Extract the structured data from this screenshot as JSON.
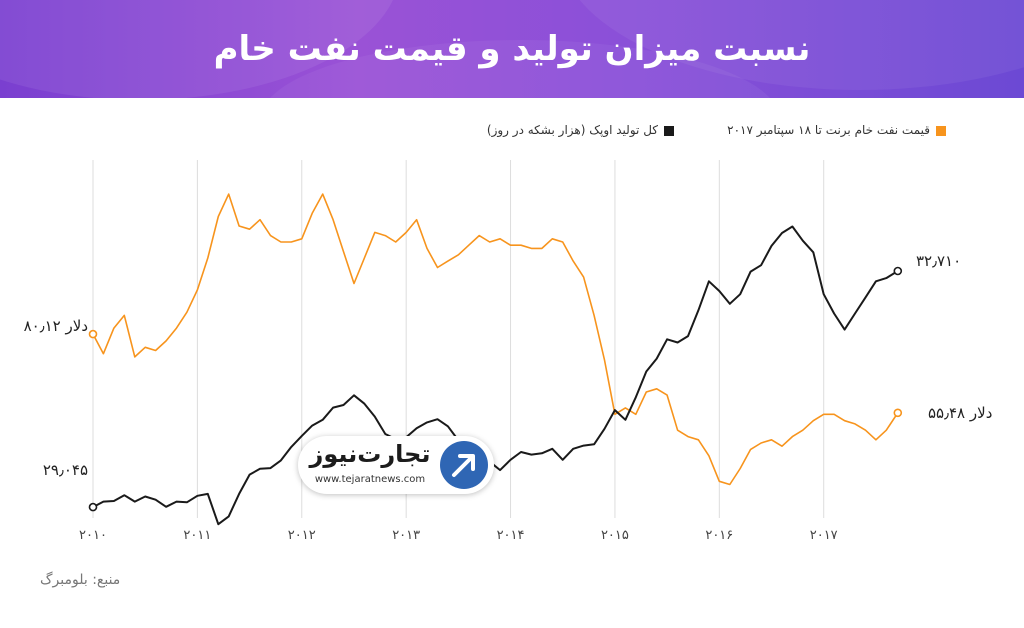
{
  "title": "نسبت میزان تولید و قیمت نفت خام",
  "legend": {
    "brent_label": "قیمت نفت خام برنت تا ۱۸ سپتامبر ۲۰۱۷",
    "opec_label": "کل تولید اوپک (هزار بشکه در روز)"
  },
  "colors": {
    "brent": "#f7941d",
    "opec": "#1a1a1a",
    "grid": "#dddddd"
  },
  "annotations": {
    "brent_start": "۸۰٫۱۲ دلار",
    "brent_end": "۵۵٫۴۸ دلار",
    "opec_start": "۲۹٫۰۴۵",
    "opec_end": "۳۲٫۷۱۰"
  },
  "logo": {
    "name": "تجارت‌نیوز",
    "url": "www.tejaratnews.com",
    "icon": "arrow-up-right-icon"
  },
  "source": "منبع: بلومبرگ",
  "chart_data": {
    "type": "line",
    "x_range": [
      2010.0,
      2017.75
    ],
    "x_ticks": [
      {
        "value": 2010,
        "label": "۲۰۱۰"
      },
      {
        "value": 2011,
        "label": "۲۰۱۱"
      },
      {
        "value": 2012,
        "label": "۲۰۱۲"
      },
      {
        "value": 2013,
        "label": "۲۰۱۳"
      },
      {
        "value": 2014,
        "label": "۲۰۱۴"
      },
      {
        "value": 2015,
        "label": "۲۰۱۵"
      },
      {
        "value": 2016,
        "label": "۲۰۱۶"
      },
      {
        "value": 2017,
        "label": "۲۰۱۷"
      }
    ],
    "grid": "vertical",
    "legend_position": "top",
    "series": [
      {
        "key": "brent",
        "unit": "USD per barrel",
        "y_range": [
          25,
          130
        ],
        "points": [
          [
            2010.0,
            80.12
          ],
          [
            2010.1,
            74
          ],
          [
            2010.2,
            82
          ],
          [
            2010.3,
            86
          ],
          [
            2010.4,
            73
          ],
          [
            2010.5,
            76
          ],
          [
            2010.6,
            75
          ],
          [
            2010.7,
            78
          ],
          [
            2010.8,
            82
          ],
          [
            2010.9,
            87
          ],
          [
            2011.0,
            94
          ],
          [
            2011.1,
            104
          ],
          [
            2011.2,
            117
          ],
          [
            2011.3,
            124
          ],
          [
            2011.4,
            114
          ],
          [
            2011.5,
            113
          ],
          [
            2011.6,
            116
          ],
          [
            2011.7,
            111
          ],
          [
            2011.8,
            109
          ],
          [
            2011.9,
            109
          ],
          [
            2012.0,
            110
          ],
          [
            2012.1,
            118
          ],
          [
            2012.2,
            124
          ],
          [
            2012.3,
            116
          ],
          [
            2012.4,
            106
          ],
          [
            2012.5,
            96
          ],
          [
            2012.6,
            104
          ],
          [
            2012.7,
            112
          ],
          [
            2012.8,
            111
          ],
          [
            2012.9,
            109
          ],
          [
            2013.0,
            112
          ],
          [
            2013.1,
            116
          ],
          [
            2013.2,
            107
          ],
          [
            2013.3,
            101
          ],
          [
            2013.4,
            103
          ],
          [
            2013.5,
            105
          ],
          [
            2013.6,
            108
          ],
          [
            2013.7,
            111
          ],
          [
            2013.8,
            109
          ],
          [
            2013.9,
            110
          ],
          [
            2014.0,
            108
          ],
          [
            2014.1,
            108
          ],
          [
            2014.2,
            107
          ],
          [
            2014.3,
            107
          ],
          [
            2014.4,
            110
          ],
          [
            2014.5,
            109
          ],
          [
            2014.6,
            103
          ],
          [
            2014.7,
            98
          ],
          [
            2014.8,
            86
          ],
          [
            2014.9,
            72
          ],
          [
            2015.0,
            55
          ],
          [
            2015.1,
            57
          ],
          [
            2015.2,
            55
          ],
          [
            2015.3,
            62
          ],
          [
            2015.4,
            63
          ],
          [
            2015.5,
            61
          ],
          [
            2015.6,
            50
          ],
          [
            2015.7,
            48
          ],
          [
            2015.8,
            47
          ],
          [
            2015.9,
            42
          ],
          [
            2016.0,
            34
          ],
          [
            2016.1,
            33
          ],
          [
            2016.2,
            38
          ],
          [
            2016.3,
            44
          ],
          [
            2016.4,
            46
          ],
          [
            2016.5,
            47
          ],
          [
            2016.6,
            45
          ],
          [
            2016.7,
            48
          ],
          [
            2016.8,
            50
          ],
          [
            2016.9,
            53
          ],
          [
            2017.0,
            55
          ],
          [
            2017.1,
            55
          ],
          [
            2017.2,
            53
          ],
          [
            2017.3,
            52
          ],
          [
            2017.4,
            50
          ],
          [
            2017.5,
            47
          ],
          [
            2017.6,
            50
          ],
          [
            2017.71,
            55.48
          ]
        ]
      },
      {
        "key": "opec",
        "unit": "thousand barrels per day",
        "y_range": [
          29000,
          34200
        ],
        "points": [
          [
            2010.0,
            29045
          ],
          [
            2010.1,
            29130
          ],
          [
            2010.2,
            29140
          ],
          [
            2010.3,
            29230
          ],
          [
            2010.4,
            29130
          ],
          [
            2010.5,
            29210
          ],
          [
            2010.6,
            29160
          ],
          [
            2010.7,
            29050
          ],
          [
            2010.8,
            29130
          ],
          [
            2010.9,
            29120
          ],
          [
            2011.0,
            29220
          ],
          [
            2011.1,
            29250
          ],
          [
            2011.2,
            28780
          ],
          [
            2011.3,
            28900
          ],
          [
            2011.4,
            29250
          ],
          [
            2011.5,
            29550
          ],
          [
            2011.6,
            29640
          ],
          [
            2011.7,
            29650
          ],
          [
            2011.8,
            29770
          ],
          [
            2011.9,
            29980
          ],
          [
            2012.0,
            30150
          ],
          [
            2012.1,
            30310
          ],
          [
            2012.2,
            30400
          ],
          [
            2012.3,
            30590
          ],
          [
            2012.4,
            30630
          ],
          [
            2012.5,
            30780
          ],
          [
            2012.6,
            30650
          ],
          [
            2012.7,
            30450
          ],
          [
            2012.8,
            30180
          ],
          [
            2012.9,
            30100
          ],
          [
            2013.0,
            30130
          ],
          [
            2013.1,
            30270
          ],
          [
            2013.2,
            30360
          ],
          [
            2013.3,
            30410
          ],
          [
            2013.4,
            30300
          ],
          [
            2013.5,
            30080
          ],
          [
            2013.6,
            29850
          ],
          [
            2013.7,
            29700
          ],
          [
            2013.8,
            29750
          ],
          [
            2013.9,
            29620
          ],
          [
            2014.0,
            29780
          ],
          [
            2014.1,
            29900
          ],
          [
            2014.2,
            29860
          ],
          [
            2014.3,
            29880
          ],
          [
            2014.4,
            29950
          ],
          [
            2014.5,
            29780
          ],
          [
            2014.6,
            29950
          ],
          [
            2014.7,
            30000
          ],
          [
            2014.8,
            30020
          ],
          [
            2014.9,
            30260
          ],
          [
            2015.0,
            30550
          ],
          [
            2015.1,
            30400
          ],
          [
            2015.2,
            30750
          ],
          [
            2015.3,
            31150
          ],
          [
            2015.4,
            31350
          ],
          [
            2015.5,
            31650
          ],
          [
            2015.6,
            31600
          ],
          [
            2015.7,
            31700
          ],
          [
            2015.8,
            32100
          ],
          [
            2015.9,
            32550
          ],
          [
            2016.0,
            32400
          ],
          [
            2016.1,
            32200
          ],
          [
            2016.2,
            32350
          ],
          [
            2016.3,
            32700
          ],
          [
            2016.4,
            32800
          ],
          [
            2016.5,
            33100
          ],
          [
            2016.6,
            33300
          ],
          [
            2016.7,
            33400
          ],
          [
            2016.8,
            33180
          ],
          [
            2016.9,
            33000
          ],
          [
            2017.0,
            32350
          ],
          [
            2017.1,
            32050
          ],
          [
            2017.2,
            31800
          ],
          [
            2017.3,
            32050
          ],
          [
            2017.4,
            32300
          ],
          [
            2017.5,
            32550
          ],
          [
            2017.6,
            32600
          ],
          [
            2017.71,
            32710
          ]
        ]
      }
    ]
  }
}
